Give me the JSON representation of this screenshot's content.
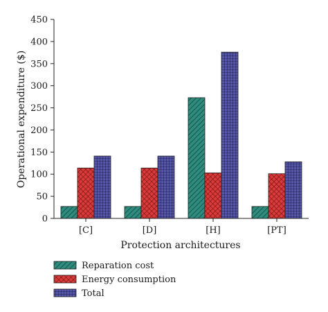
{
  "chart_data": {
    "type": "bar",
    "title": "",
    "xlabel": "Protection architectures",
    "ylabel": "Operational expenditure ($)",
    "categories": [
      "[C]",
      "[D]",
      "[H]",
      "[PT]"
    ],
    "ylim": [
      0,
      450
    ],
    "yticks": [
      0,
      50,
      100,
      150,
      200,
      250,
      300,
      350,
      400,
      450
    ],
    "grid": false,
    "legend_position": "bottom-left",
    "series": [
      {
        "name": "Reparation cost",
        "values": [
          27,
          27,
          273,
          27
        ],
        "color": "#2e8b7e",
        "pattern": "diagonal-hatch"
      },
      {
        "name": "Energy consumption",
        "values": [
          114,
          114,
          103,
          101
        ],
        "color": "#d93a3a",
        "pattern": "crosshatch"
      },
      {
        "name": "Total",
        "values": [
          141,
          141,
          376,
          128
        ],
        "color": "#4a4a9a",
        "pattern": "grid"
      }
    ]
  }
}
